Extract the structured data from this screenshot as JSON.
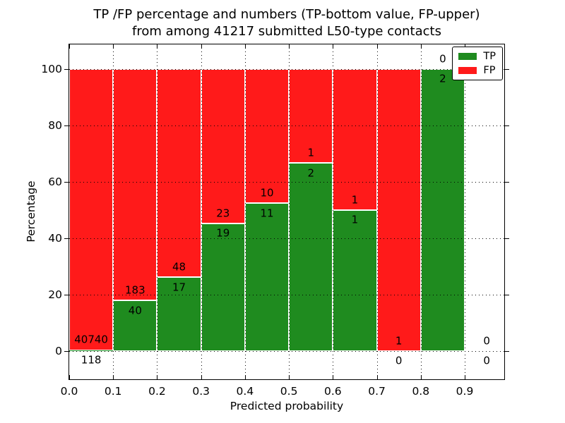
{
  "chart_data": {
    "type": "bar",
    "variant": "stacked-percentage",
    "title_line1": "TP /FP percentage and numbers (TP-bottom value, FP-upper)",
    "title_line2": "from among 41217 submitted L50-type contacts",
    "xlabel": "Predicted probability",
    "ylabel": "Percentage",
    "xlim": [
      0,
      0.99
    ],
    "ylim": [
      -10.75,
      109
    ],
    "grid": "dotted-black",
    "legend_position": "upper-right",
    "colors": {
      "tp": "#1f8b1f",
      "fp": "#ff1a1a",
      "annotation": "#000000"
    },
    "xticks": [
      "0.0",
      "0.1",
      "0.2",
      "0.3",
      "0.4",
      "0.5",
      "0.6",
      "0.7",
      "0.8",
      "0.9"
    ],
    "yticks": [
      "0",
      "20",
      "40",
      "60",
      "80",
      "100"
    ],
    "series": [
      {
        "name": "TP"
      },
      {
        "name": "FP"
      }
    ],
    "bins": [
      {
        "x_start": 0.0,
        "x_end": 0.1,
        "tp_count": 118,
        "fp_count": 40740,
        "tp_pct": 0.29,
        "fp_pct": 99.71
      },
      {
        "x_start": 0.1,
        "x_end": 0.2,
        "tp_count": 40,
        "fp_count": 183,
        "tp_pct": 17.94,
        "fp_pct": 82.06
      },
      {
        "x_start": 0.2,
        "x_end": 0.3,
        "tp_count": 17,
        "fp_count": 48,
        "tp_pct": 26.15,
        "fp_pct": 73.85
      },
      {
        "x_start": 0.3,
        "x_end": 0.4,
        "tp_count": 19,
        "fp_count": 23,
        "tp_pct": 45.24,
        "fp_pct": 54.76
      },
      {
        "x_start": 0.4,
        "x_end": 0.5,
        "tp_count": 11,
        "fp_count": 10,
        "tp_pct": 52.38,
        "fp_pct": 47.62
      },
      {
        "x_start": 0.5,
        "x_end": 0.6,
        "tp_count": 2,
        "fp_count": 1,
        "tp_pct": 66.67,
        "fp_pct": 33.33
      },
      {
        "x_start": 0.6,
        "x_end": 0.7,
        "tp_count": 1,
        "fp_count": 1,
        "tp_pct": 50.0,
        "fp_pct": 50.0
      },
      {
        "x_start": 0.7,
        "x_end": 0.8,
        "tp_count": 0,
        "fp_count": 1,
        "tp_pct": 0.0,
        "fp_pct": 100.0
      },
      {
        "x_start": 0.8,
        "x_end": 0.9,
        "tp_count": 2,
        "fp_count": 0,
        "tp_pct": 100.0,
        "fp_pct": 0.0
      },
      {
        "x_start": 0.9,
        "x_end": 1.0,
        "tp_count": 0,
        "fp_count": 0,
        "tp_pct": 0.0,
        "fp_pct": 0.0
      }
    ]
  },
  "legend": {
    "items": [
      {
        "label": "TP"
      },
      {
        "label": "FP"
      }
    ]
  }
}
